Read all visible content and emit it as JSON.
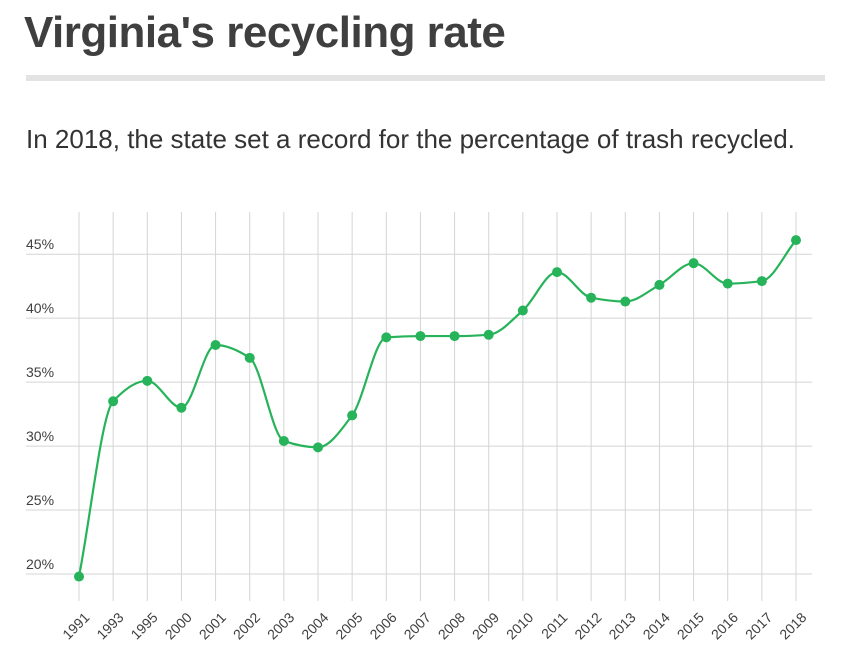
{
  "title": "Virginia's recycling rate",
  "subtitle": "In 2018, the state set a record for the percentage of trash recycled.",
  "colors": {
    "line": "#27b35a",
    "grid": "#d4d4d4",
    "text": "#3f3f3f"
  },
  "chart_data": {
    "type": "line",
    "title": "Virginia's recycling rate",
    "subtitle": "In 2018, the state set a record for the percentage of trash recycled.",
    "xlabel": "",
    "ylabel": "",
    "categories": [
      "1991",
      "1993",
      "1995",
      "2000",
      "2001",
      "2002",
      "2003",
      "2004",
      "2005",
      "2006",
      "2007",
      "2008",
      "2009",
      "2010",
      "2011",
      "2012",
      "2013",
      "2014",
      "2015",
      "2016",
      "2017",
      "2018"
    ],
    "series": [
      {
        "values": [
          19.8,
          33.5,
          35.1,
          33.0,
          37.9,
          36.9,
          30.4,
          29.9,
          32.4,
          38.5,
          38.6,
          38.6,
          38.7,
          40.6,
          43.6,
          41.6,
          41.3,
          42.6,
          44.3,
          42.7,
          42.9,
          46.1
        ]
      }
    ],
    "y_ticks": [
      "20%",
      "25%",
      "30%",
      "35%",
      "40%",
      "45%"
    ],
    "y_tick_values": [
      20,
      25,
      30,
      35,
      40,
      45
    ],
    "ylim": [
      18.2,
      48.3
    ],
    "grid": true,
    "legend": "none"
  }
}
